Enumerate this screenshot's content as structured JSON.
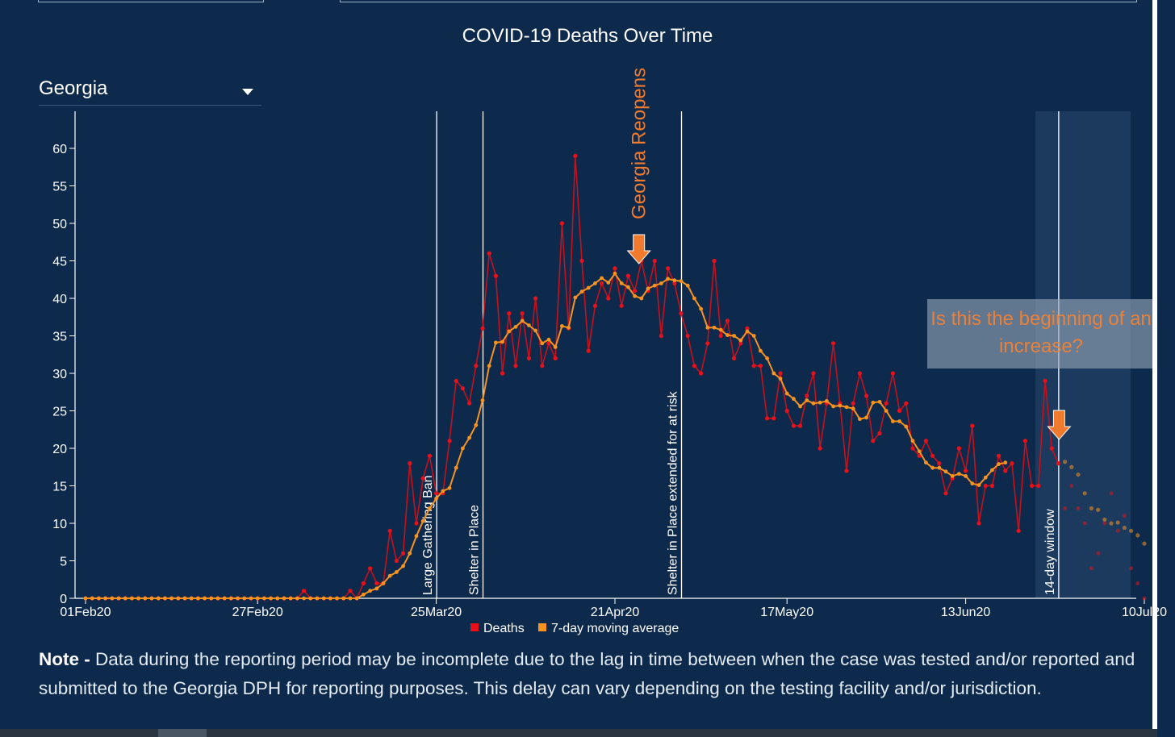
{
  "header": {
    "title": "COVID-19 Deaths Over Time"
  },
  "selector": {
    "value": "Georgia"
  },
  "colors": {
    "background": "#0d2a4c",
    "deaths": "#e8101a",
    "moving_average": "#f7931e",
    "annotation": "#f07a2d"
  },
  "chart_data": {
    "type": "line",
    "x_start": "01Feb20",
    "x_tick_labels": [
      "01Feb20",
      "27Feb20",
      "25Mar20",
      "21Apr20",
      "17May20",
      "13Jun20",
      "10Jul20"
    ],
    "x_tick_days": [
      0,
      26,
      53,
      80,
      106,
      133,
      160
    ],
    "y_ticks": [
      0,
      5,
      10,
      15,
      20,
      25,
      30,
      35,
      40,
      45,
      50,
      55,
      60
    ],
    "ylim": [
      0,
      65
    ],
    "legend": [
      {
        "name": "Deaths",
        "color": "#e8101a"
      },
      {
        "name": "7-day moving average",
        "color": "#f7931e"
      }
    ],
    "legend_position": "bottom-center",
    "series": [
      {
        "name": "Deaths",
        "start_day": 0,
        "values": [
          0,
          0,
          0,
          0,
          0,
          0,
          0,
          0,
          0,
          0,
          0,
          0,
          0,
          0,
          0,
          0,
          0,
          0,
          0,
          0,
          0,
          0,
          0,
          0,
          0,
          0,
          0,
          0,
          0,
          0,
          0,
          0,
          0,
          1,
          0,
          0,
          0,
          0,
          0,
          0,
          1,
          0,
          2,
          4,
          2,
          2,
          9,
          5,
          6,
          18,
          10,
          16,
          19,
          14,
          14,
          21,
          29,
          28,
          26,
          31,
          36,
          46,
          43,
          30,
          38,
          31,
          38,
          32,
          40,
          31,
          34,
          32,
          50,
          36,
          59,
          45,
          33,
          39,
          42,
          40,
          44,
          39,
          43,
          41,
          45,
          41,
          45,
          35,
          44,
          42,
          38,
          35,
          31,
          30,
          34,
          45,
          35,
          37,
          32,
          34,
          36,
          31,
          31,
          24,
          24,
          30,
          25,
          23,
          23,
          27,
          30,
          20,
          26,
          34,
          26,
          17,
          26,
          30,
          27,
          21,
          22,
          26,
          30,
          25,
          26,
          20,
          19,
          21,
          19,
          18,
          14,
          16,
          20,
          17,
          23,
          10,
          15,
          15,
          19,
          17,
          18,
          9,
          21,
          15,
          15,
          29,
          20,
          18
        ]
      },
      {
        "name": "7-day moving average",
        "start_day": 0,
        "values": [
          0,
          0,
          0,
          0,
          0,
          0,
          0,
          0,
          0,
          0,
          0,
          0,
          0,
          0,
          0,
          0,
          0,
          0,
          0,
          0,
          0,
          0,
          0,
          0,
          0,
          0,
          0,
          0,
          0,
          0,
          0,
          0,
          0,
          0,
          0,
          0,
          0,
          0,
          0,
          0,
          0,
          0,
          0.5,
          1,
          1.3,
          2,
          3,
          3.5,
          4.3,
          6,
          8.3,
          10.3,
          12,
          13.3,
          14.3,
          14.7,
          17.4,
          20,
          21.4,
          23.1,
          26.4,
          31,
          34.1,
          34.2,
          35.6,
          36.2,
          37,
          36.4,
          35.7,
          34,
          34.5,
          33.5,
          36.3,
          36.1,
          40.1,
          40.9,
          41.4,
          42,
          42.7,
          42.1,
          43.3,
          42,
          41.5,
          40.3,
          40,
          41.3,
          41.7,
          42,
          42.6,
          42.4,
          42.3,
          41.7,
          40,
          38.6,
          36.1,
          36.1,
          35.8,
          35.1,
          35,
          34.4,
          35.6,
          35,
          33,
          32,
          30,
          29.3,
          27.3,
          26.6,
          25.6,
          26.4,
          26,
          26.1,
          26.3,
          25.6,
          25.7,
          25.5,
          25.3,
          23.9,
          24.1,
          26.1,
          26.2,
          25,
          23.6,
          23.6,
          22.9,
          21,
          19.6,
          18.1,
          17.4,
          17.4,
          16.9,
          16.3,
          16.6,
          16.3,
          15.3,
          15.1,
          16.1,
          17.1,
          17.9,
          18.1
        ]
      }
    ],
    "window_series": [
      {
        "name": "Deaths (14-day window)",
        "start_day": 148,
        "values": [
          12,
          15,
          12,
          10,
          4,
          6,
          10,
          14,
          9,
          11,
          4,
          2,
          0
        ]
      },
      {
        "name": "7-day moving average (14-day window)",
        "start_day": 148,
        "values": [
          18.2,
          17.5,
          16.5,
          14,
          12,
          11.8,
          10.5,
          10,
          10.1,
          9.4,
          9,
          8.4,
          7.3
        ]
      }
    ],
    "event_lines": [
      {
        "day": 53,
        "label": "Large Gathering Ban"
      },
      {
        "day": 60,
        "label": "Shelter in Place"
      },
      {
        "day": 90,
        "label": "Shelter in Place extended for at risk"
      },
      {
        "day": 147,
        "label": "14-day window"
      }
    ],
    "annotations": [
      {
        "text": "Georgia Reopens",
        "day": 83.5
      },
      {
        "text": "Is this the beginning of an increase?",
        "day": 147
      }
    ]
  },
  "note": {
    "label": "Note -",
    "text": "Data during the reporting period may be incomplete due to the lag in time between when the case was tested and/or reported and submitted to the Georgia DPH for reporting purposes. This delay can vary depending on the testing facility and/or jurisdiction."
  }
}
